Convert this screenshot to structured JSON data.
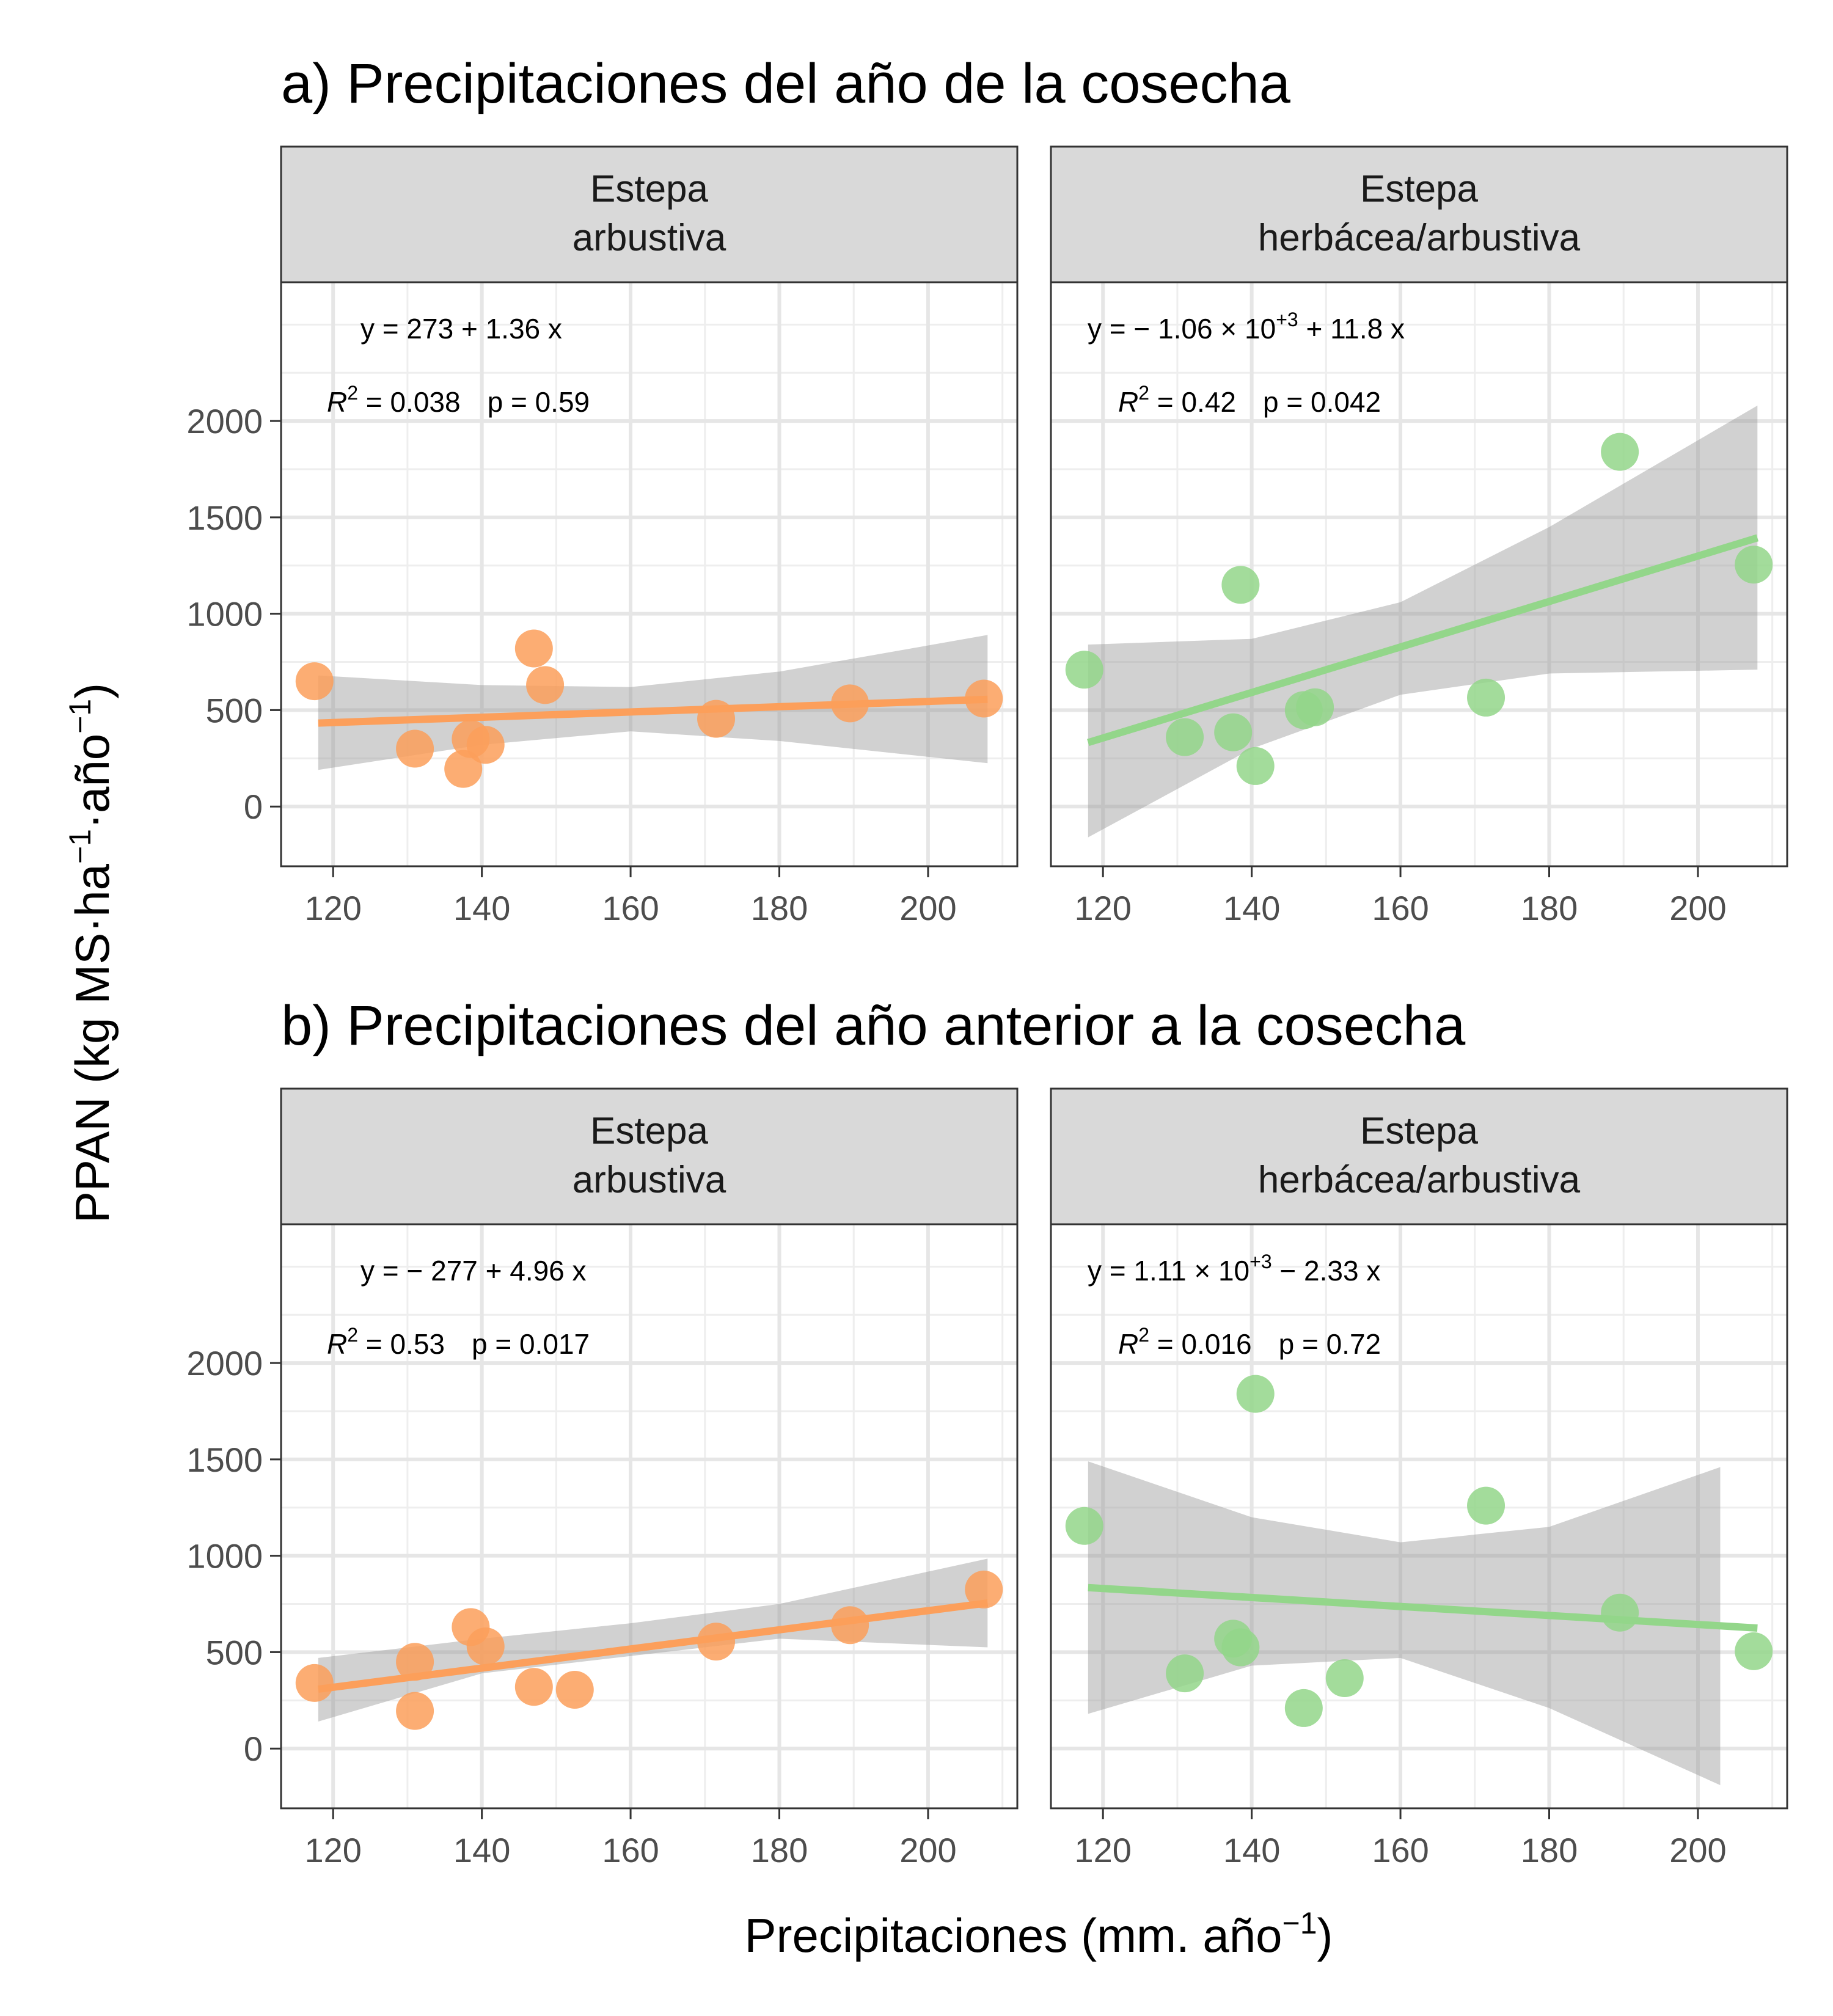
{
  "figure": {
    "ylabel_main": "PPAN (kg MS·ha",
    "ylabel_sup1": "−1",
    "ylabel_mid": "·año",
    "ylabel_sup2": "−1",
    "ylabel_end": ")",
    "xlabel_main": "Precipitaciones (mm. año",
    "xlabel_sup": "−1",
    "xlabel_end": ")"
  },
  "colors": {
    "shrub": "#fc9f5b",
    "grass": "#93d68a",
    "ribbon": "#999999",
    "strip": "#d9d9d9"
  },
  "axes": {
    "xlim": [
      113,
      212
    ],
    "ylim": [
      -310,
      2720
    ],
    "x_ticks": [
      120,
      140,
      160,
      180,
      200
    ],
    "x_tick_labels": [
      "120",
      "140",
      "160",
      "180",
      "200"
    ],
    "y_ticks": [
      0,
      500,
      1000,
      1500,
      2000
    ],
    "y_tick_labels": [
      "0",
      "500",
      "1000",
      "1500",
      "2000"
    ],
    "x_minor": [
      130,
      150,
      170,
      190,
      210
    ],
    "y_minor": [
      250,
      750,
      1250,
      1750,
      2250,
      2500
    ]
  },
  "chart_data": [
    {
      "type": "scatter",
      "row_title": "a) Precipitaciones del año de la cosecha",
      "panels": [
        {
          "strip": [
            "Estepa",
            "arbustiva"
          ],
          "series": "shrub",
          "eq": {
            "lhs": "y = 273 + 1.36 x"
          },
          "stats": {
            "r2_label": "R",
            "r2_sup": "2",
            "r2_value": " = 0.038",
            "p_label": "p = 0.59"
          },
          "points": [
            [
              117.5,
              650
            ],
            [
              131,
              300
            ],
            [
              137.5,
              195
            ],
            [
              138.5,
              350
            ],
            [
              140.5,
              320
            ],
            [
              147,
              820
            ],
            [
              148.5,
              630
            ],
            [
              171.5,
              455
            ],
            [
              189.5,
              535
            ],
            [
              207.5,
              560
            ]
          ],
          "fit": [
            [
              118,
              433
            ],
            [
              208,
              556
            ]
          ],
          "ribbon_upper": [
            [
              118,
              680
            ],
            [
              140,
              630
            ],
            [
              160,
              620
            ],
            [
              180,
              700
            ],
            [
              208,
              890
            ]
          ],
          "ribbon_lower": [
            [
              118,
              190
            ],
            [
              140,
              320
            ],
            [
              160,
              390
            ],
            [
              180,
              340
            ],
            [
              208,
              225
            ]
          ]
        },
        {
          "strip": [
            "Estepa",
            "herbácea/arbustiva"
          ],
          "series": "grass",
          "eq": {
            "lhs": "y = − 1.06 × 10",
            "sup": "+3",
            "rhs": " + 11.8 x"
          },
          "stats": {
            "r2_label": "R",
            "r2_sup": "2",
            "r2_value": " = 0.42",
            "p_label": "p = 0.042"
          },
          "points": [
            [
              117.5,
              710
            ],
            [
              131,
              360
            ],
            [
              137.5,
              385
            ],
            [
              138.5,
              1150
            ],
            [
              140.5,
              210
            ],
            [
              147,
              500
            ],
            [
              148.5,
              515
            ],
            [
              171.5,
              565
            ],
            [
              189.5,
              1840
            ],
            [
              207.5,
              1255
            ]
          ],
          "fit": [
            [
              118,
              332
            ],
            [
              208,
              1394
            ]
          ],
          "ribbon_upper": [
            [
              118,
              840
            ],
            [
              140,
              870
            ],
            [
              160,
              1060
            ],
            [
              180,
              1450
            ],
            [
              208,
              2080
            ]
          ],
          "ribbon_lower": [
            [
              118,
              -160
            ],
            [
              140,
              300
            ],
            [
              160,
              580
            ],
            [
              180,
              690
            ],
            [
              208,
              710
            ]
          ]
        }
      ]
    },
    {
      "type": "scatter",
      "row_title": "b) Precipitaciones del año anterior a la cosecha",
      "panels": [
        {
          "strip": [
            "Estepa",
            "arbustiva"
          ],
          "series": "shrub",
          "eq": {
            "lhs": "y = − 277 + 4.96 x"
          },
          "stats": {
            "r2_label": "R",
            "r2_sup": "2",
            "r2_value": " = 0.53",
            "p_label": "p = 0.017"
          },
          "points": [
            [
              117.5,
              340
            ],
            [
              131,
              450
            ],
            [
              131,
              195
            ],
            [
              138.5,
              630
            ],
            [
              140.5,
              530
            ],
            [
              147,
              320
            ],
            [
              152.5,
              305
            ],
            [
              171.5,
              555
            ],
            [
              189.5,
              640
            ],
            [
              207.5,
              825
            ]
          ],
          "fit": [
            [
              118,
              308
            ],
            [
              208,
              755
            ]
          ],
          "ribbon_upper": [
            [
              118,
              470
            ],
            [
              140,
              570
            ],
            [
              160,
              650
            ],
            [
              180,
              750
            ],
            [
              208,
              985
            ]
          ],
          "ribbon_lower": [
            [
              118,
              140
            ],
            [
              140,
              390
            ],
            [
              160,
              480
            ],
            [
              180,
              570
            ],
            [
              208,
              525
            ]
          ]
        },
        {
          "strip": [
            "Estepa",
            "herbácea/arbustiva"
          ],
          "series": "grass",
          "eq": {
            "lhs": "y = 1.11 × 10",
            "sup": "+3",
            "rhs": " − 2.33 x"
          },
          "stats": {
            "r2_label": "R",
            "r2_sup": "2",
            "r2_value": " = 0.016",
            "p_label": "p = 0.72"
          },
          "points": [
            [
              117.5,
              1155
            ],
            [
              131,
              390
            ],
            [
              137.5,
              570
            ],
            [
              138.5,
              525
            ],
            [
              140.5,
              1840
            ],
            [
              147,
              210
            ],
            [
              152.5,
              365
            ],
            [
              171.5,
              1260
            ],
            [
              189.5,
              705
            ],
            [
              207.5,
              505
            ]
          ],
          "fit": [
            [
              118,
              835
            ],
            [
              208,
              625
            ]
          ],
          "ribbon_upper": [
            [
              118,
              1490
            ],
            [
              140,
              1200
            ],
            [
              160,
              1070
            ],
            [
              180,
              1150
            ],
            [
              203,
              1460
            ]
          ],
          "ribbon_lower": [
            [
              118,
              180
            ],
            [
              140,
              430
            ],
            [
              160,
              470
            ],
            [
              180,
              210
            ],
            [
              203,
              -190
            ]
          ]
        }
      ]
    }
  ]
}
